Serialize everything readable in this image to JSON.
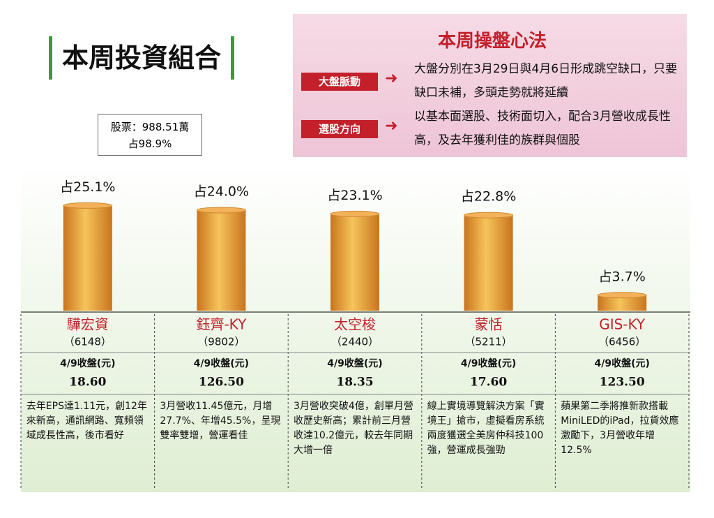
{
  "title": "本周投資組合",
  "holdings": {
    "line1": "股票：988.51萬",
    "line2": "占98.9%"
  },
  "strategy": {
    "title": "本周操盤心法",
    "items": [
      {
        "label": "大盤脈動",
        "text": "大盤分別在3月29日與4月6日形成跳空缺口，只要缺口未補，多頭走勢就將延續"
      },
      {
        "label": "選股方向",
        "text": "以基本面選股、技術面切入，配合3月營收成長性高，及去年獲利佳的族群與個股"
      }
    ]
  },
  "chart_data": {
    "type": "bar",
    "color": "#f6c45a",
    "categories": [
      "驊宏資",
      "鈺齊-KY",
      "太空梭",
      "蒙恬",
      "GIS-KY"
    ],
    "values": [
      25.1,
      24.0,
      23.1,
      22.8,
      3.7
    ],
    "value_labels": [
      "占25.1%",
      "占24.0%",
      "占23.1%",
      "占22.8%",
      "占3.7%"
    ]
  },
  "stocks": [
    {
      "code": "（6148）",
      "price_label": "4/9收盤(元)",
      "price": "18.60",
      "note": "去年EPS達1.11元，創12年來新高，通訊網路、寬頻領域成長性高，後市看好"
    },
    {
      "code": "（9802）",
      "price_label": "4/9收盤(元)",
      "price": "126.50",
      "note": "3月營收11.45億元，月增27.7%、年增45.5%，呈現雙率雙增，營運看佳"
    },
    {
      "code": "（2440）",
      "price_label": "4/9收盤(元)",
      "price": "18.35",
      "note": "3月營收突破4億，創單月營收歷史新高；累計前三月營收達10.2億元，較去年同期大增一倍"
    },
    {
      "code": "（5211）",
      "price_label": "4/9收盤(元)",
      "price": "17.60",
      "note": "線上實境導覽解決方案「實境王」搶市，虛擬看房系統兩度獲選全美房仲科技100強，營運成長強勁"
    },
    {
      "code": "（6456）",
      "price_label": "4/9收盤(元)",
      "price": "123.50",
      "note": "蘋果第二季將推新款搭載 MiniLED的iPad，拉貨效應激勵下，3月營收年增12.5%"
    }
  ]
}
